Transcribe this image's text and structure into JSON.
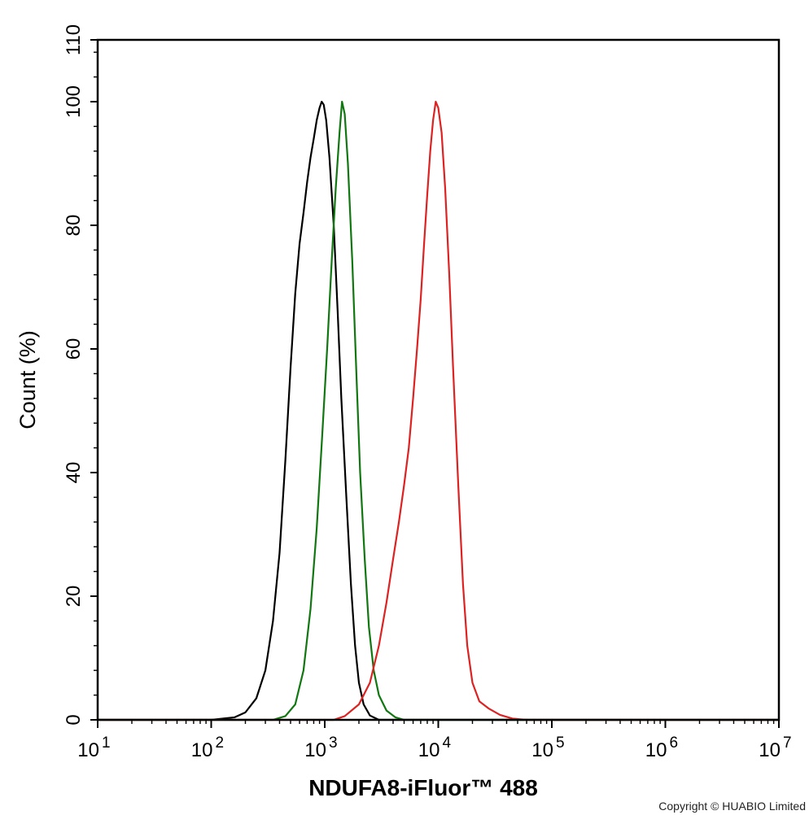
{
  "chart_data": {
    "type": "line",
    "xlabel": "NDUFA8-iFluor™ 488",
    "ylabel": "Count  (%)",
    "xscale": "log",
    "xlim": [
      10,
      10000000
    ],
    "ylim": [
      0,
      110
    ],
    "x_ticks": [
      {
        "base": "10",
        "exp": "1",
        "value": 10
      },
      {
        "base": "10",
        "exp": "2",
        "value": 100
      },
      {
        "base": "10",
        "exp": "3",
        "value": 1000
      },
      {
        "base": "10",
        "exp": "4",
        "value": 10000
      },
      {
        "base": "10",
        "exp": "5",
        "value": 100000
      },
      {
        "base": "10",
        "exp": "6",
        "value": 1000000
      },
      {
        "base": "10",
        "exp": "7",
        "value": 10000000
      }
    ],
    "y_ticks": [
      "0",
      "20",
      "40",
      "60",
      "80",
      "100",
      "110"
    ],
    "grid": false,
    "series": [
      {
        "color": "#000000",
        "points": [
          [
            10,
            0
          ],
          [
            100,
            0
          ],
          [
            160,
            0.4
          ],
          [
            200,
            1.2
          ],
          [
            250,
            3.5
          ],
          [
            300,
            8
          ],
          [
            350,
            16
          ],
          [
            400,
            27
          ],
          [
            450,
            42
          ],
          [
            500,
            57
          ],
          [
            550,
            69
          ],
          [
            600,
            77
          ],
          [
            650,
            82
          ],
          [
            700,
            87
          ],
          [
            750,
            91
          ],
          [
            800,
            94
          ],
          [
            850,
            97
          ],
          [
            900,
            99
          ],
          [
            940,
            100
          ],
          [
            980,
            99.5
          ],
          [
            1030,
            97
          ],
          [
            1100,
            91
          ],
          [
            1200,
            80
          ],
          [
            1300,
            66
          ],
          [
            1400,
            52
          ],
          [
            1550,
            36
          ],
          [
            1700,
            22
          ],
          [
            1850,
            12
          ],
          [
            2000,
            6
          ],
          [
            2200,
            2.5
          ],
          [
            2500,
            0.7
          ],
          [
            3000,
            0
          ],
          [
            10000000,
            0
          ]
        ]
      },
      {
        "color": "#117711",
        "points": [
          [
            10,
            0
          ],
          [
            350,
            0
          ],
          [
            450,
            0.6
          ],
          [
            550,
            2.5
          ],
          [
            650,
            8
          ],
          [
            750,
            18
          ],
          [
            850,
            31
          ],
          [
            950,
            46
          ],
          [
            1050,
            60
          ],
          [
            1150,
            74
          ],
          [
            1250,
            86
          ],
          [
            1350,
            95
          ],
          [
            1420,
            100
          ],
          [
            1500,
            98
          ],
          [
            1600,
            90
          ],
          [
            1750,
            74
          ],
          [
            1900,
            56
          ],
          [
            2050,
            40
          ],
          [
            2250,
            26
          ],
          [
            2450,
            15
          ],
          [
            2700,
            8
          ],
          [
            3000,
            4
          ],
          [
            3500,
            1.5
          ],
          [
            4200,
            0.4
          ],
          [
            5000,
            0
          ],
          [
            10000000,
            0
          ]
        ]
      },
      {
        "color": "#dd2222",
        "points": [
          [
            10,
            0
          ],
          [
            1200,
            0
          ],
          [
            1500,
            0.6
          ],
          [
            2000,
            2.5
          ],
          [
            2500,
            6
          ],
          [
            3000,
            12
          ],
          [
            3500,
            19
          ],
          [
            4000,
            26
          ],
          [
            4500,
            32
          ],
          [
            5000,
            38
          ],
          [
            5500,
            44
          ],
          [
            6000,
            52
          ],
          [
            6500,
            60
          ],
          [
            7000,
            68
          ],
          [
            7500,
            77
          ],
          [
            8000,
            85
          ],
          [
            8500,
            92
          ],
          [
            9000,
            97
          ],
          [
            9500,
            100
          ],
          [
            10000,
            99
          ],
          [
            10700,
            95
          ],
          [
            11500,
            86
          ],
          [
            12500,
            72
          ],
          [
            13500,
            57
          ],
          [
            15000,
            38
          ],
          [
            16500,
            22
          ],
          [
            18000,
            12
          ],
          [
            20000,
            6
          ],
          [
            23000,
            3
          ],
          [
            28000,
            1.8
          ],
          [
            35000,
            0.8
          ],
          [
            45000,
            0.2
          ],
          [
            60000,
            0
          ],
          [
            10000000,
            0
          ]
        ]
      }
    ]
  },
  "copyright": "Copyright © HUABIO Limited"
}
